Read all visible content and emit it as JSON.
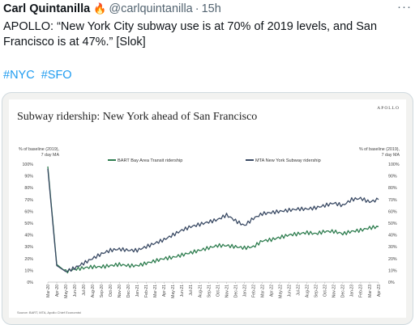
{
  "tweet": {
    "author_name": "Carl Quintanilla",
    "author_icon": "flame-icon",
    "handle": "@carlquintanilla",
    "separator": "·",
    "timestamp": "15h",
    "more_icon": "more-icon",
    "text": "APOLLO: “New York City subway use is at 70% of 2019 levels, and San Francisco is at 47%.” [Slok]",
    "hashtags": [
      "#NYC",
      "#SFO"
    ],
    "link_color": "#1d9bf0"
  },
  "chart_data": {
    "type": "line",
    "title": "Subway ridership: New York ahead of San Francisco",
    "brand": "APOLLO",
    "ylabel_left": "% of baseline (2019), 7 day MA",
    "ylabel_right": "% of baseline (2019), 7 day MA",
    "ylim": [
      0,
      100
    ],
    "yticks": [
      "0%",
      "10%",
      "20%",
      "30%",
      "40%",
      "50%",
      "60%",
      "70%",
      "80%",
      "90%",
      "100%"
    ],
    "xticks": [
      "Mar-20",
      "Apr-20",
      "May-20",
      "Jun-20",
      "Jul-20",
      "Aug-20",
      "Sep-20",
      "Oct-20",
      "Nov-20",
      "Dec-20",
      "Jan-21",
      "Feb-21",
      "Mar-21",
      "Apr-21",
      "May-21",
      "Jun-21",
      "Jul-21",
      "Aug-21",
      "Sep-21",
      "Oct-21",
      "Nov-21",
      "Dec-21",
      "Jan-22",
      "Feb-22",
      "Mar-22",
      "Apr-22",
      "May-22",
      "Jun-22",
      "Jul-22",
      "Aug-22",
      "Sep-22",
      "Oct-22",
      "Nov-22",
      "Dec-22",
      "Jan-23",
      "Feb-23",
      "Mar-23",
      "Apr-23"
    ],
    "legend_placement": "top-center",
    "grid": false,
    "source": "Source: BART, MTA, Apollo Chief Economist",
    "series": [
      {
        "name": "BART Bay Area Transit ridership",
        "color": "#2e7d4f",
        "values": [
          98,
          15,
          9,
          11,
          12,
          13,
          13,
          14,
          15,
          14,
          14,
          16,
          18,
          20,
          21,
          23,
          25,
          27,
          29,
          31,
          31,
          30,
          29,
          30,
          35,
          36,
          38,
          40,
          41,
          42,
          41,
          43,
          43,
          41,
          43,
          44,
          46,
          47
        ]
      },
      {
        "name": "MTA New York Subway ridership",
        "color": "#3a4a64",
        "values": [
          96,
          14,
          9,
          12,
          16,
          20,
          24,
          27,
          28,
          27,
          27,
          30,
          33,
          36,
          40,
          44,
          47,
          49,
          51,
          53,
          57,
          52,
          48,
          54,
          58,
          59,
          60,
          61,
          62,
          62,
          63,
          65,
          67,
          65,
          70,
          71,
          68,
          70
        ]
      }
    ]
  }
}
